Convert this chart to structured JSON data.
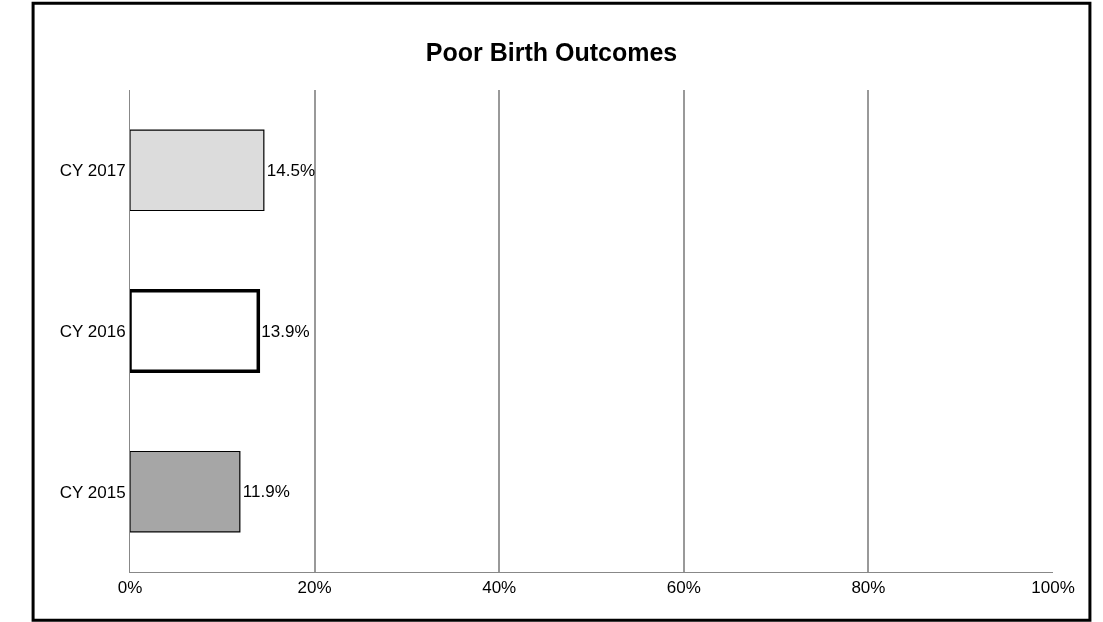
{
  "chart_data": {
    "type": "bar",
    "orientation": "horizontal",
    "title": "Poor Birth Outcomes",
    "categories": [
      "CY 2017",
      "CY 2016",
      "CY 2015"
    ],
    "values": [
      14.5,
      13.9,
      11.9
    ],
    "colors": [
      "#dcdcdc",
      "#ffffff",
      "#a6a6a6"
    ],
    "value_labels": [
      "14.5%",
      "13.9%",
      "11.9%"
    ],
    "xlim": [
      0,
      100
    ],
    "xticks": [
      {
        "value": 0,
        "label": "0%"
      },
      {
        "value": 20,
        "label": "20%"
      },
      {
        "value": 40,
        "label": "40%"
      },
      {
        "value": 60,
        "label": "60%"
      },
      {
        "value": 80,
        "label": "80%"
      },
      {
        "value": 100,
        "label": "100%"
      }
    ],
    "grid": "x",
    "legend": false
  }
}
